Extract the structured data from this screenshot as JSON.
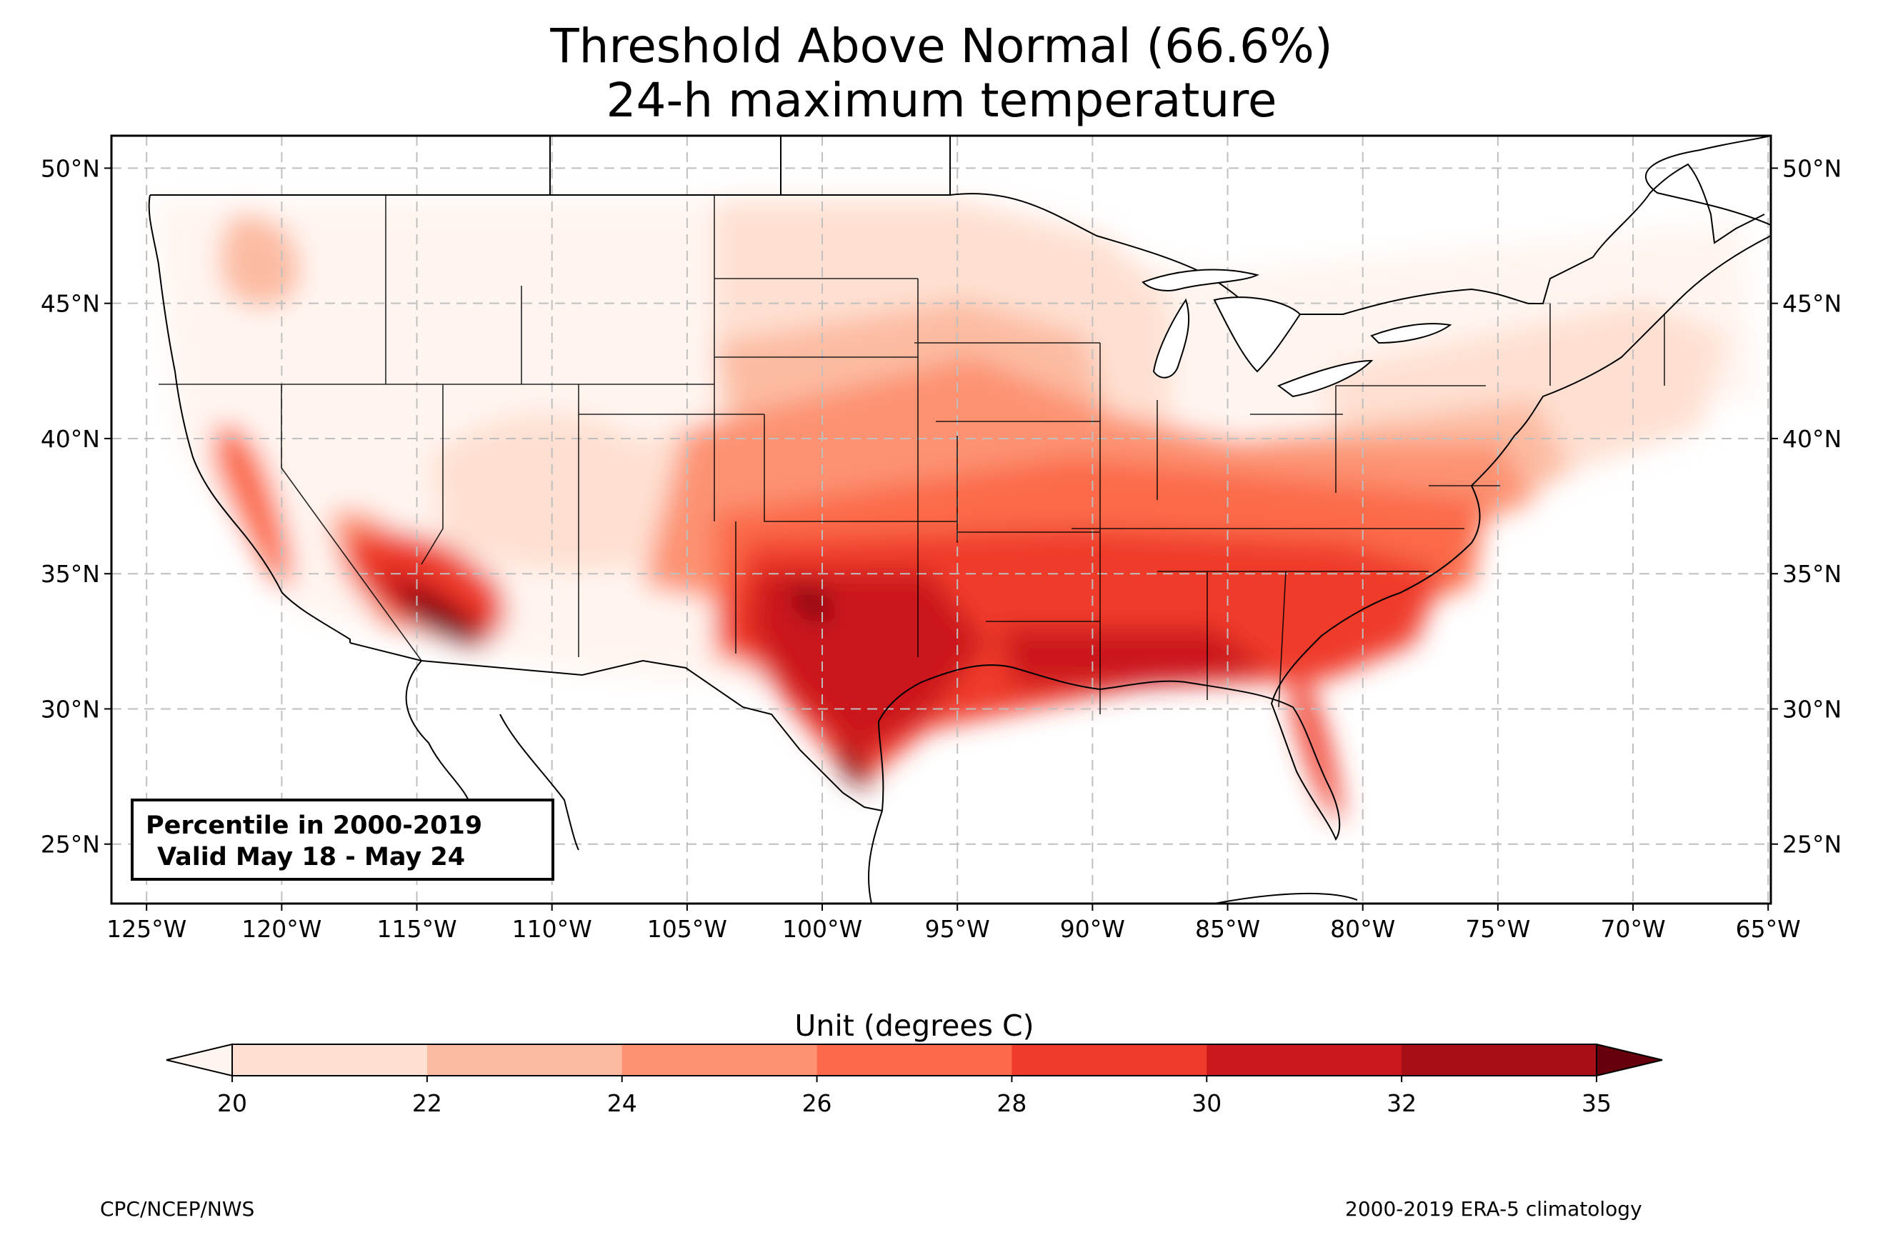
{
  "title": "Threshold Above Normal (66.6%)",
  "subtitle": "24-h maximum temperature",
  "info_box": {
    "line1": "Percentile in 2000-2019",
    "line2": "Valid May 18 - May 24"
  },
  "colorbar": {
    "title": "Unit (degrees C)",
    "ticks": [
      "20",
      "22",
      "24",
      "26",
      "28",
      "30",
      "32",
      "35"
    ],
    "colors": [
      "#fee0d2",
      "#fcbba1",
      "#fc9272",
      "#fb6a4a",
      "#ef3b2c",
      "#cb181d",
      "#a50f15"
    ],
    "under_color": "#fff5f0",
    "over_color": "#67000d"
  },
  "credits": {
    "left": "CPC/NCEP/NWS",
    "right": "2000-2019 ERA-5 climatology"
  },
  "chart_data": {
    "type": "heatmap",
    "title": "Threshold Above Normal (66.6%)",
    "subtitle": "24-h maximum temperature",
    "region": "Contiguous United States",
    "variable": "24-h maximum temperature, 66.6th percentile threshold",
    "unit": "degrees C",
    "x_axis": {
      "kind": "longitude",
      "range": [
        -126.3,
        -64.9
      ],
      "ticks": [
        -125,
        -120,
        -115,
        -110,
        -105,
        -100,
        -95,
        -90,
        -85,
        -80,
        -75,
        -70,
        -65
      ],
      "tick_labels": [
        "125°W",
        "120°W",
        "115°W",
        "110°W",
        "105°W",
        "100°W",
        "95°W",
        "90°W",
        "85°W",
        "80°W",
        "75°W",
        "70°W",
        "65°W"
      ]
    },
    "y_axis": {
      "kind": "latitude",
      "range": [
        22.8,
        51.2
      ],
      "ticks": [
        25,
        30,
        35,
        40,
        45,
        50
      ],
      "tick_labels": [
        "25°N",
        "30°N",
        "35°N",
        "40°N",
        "45°N",
        "50°N"
      ]
    },
    "levels": [
      20,
      22,
      24,
      26,
      28,
      30,
      32,
      35
    ],
    "grid": true,
    "colorbar_location": "bottom",
    "regions": [
      {
        "area": "Mountain West / Northern Plains",
        "value_range": "<20",
        "level": 0
      },
      {
        "area": "Pacific Northwest coast",
        "value_range": "<20",
        "level": 0
      },
      {
        "area": "Interior Pacific Northwest basin",
        "value_range": "22-24",
        "level": 2
      },
      {
        "area": "New England / Great Lakes",
        "value_range": "20-24",
        "level": 1
      },
      {
        "area": "Central Plains / Midwest",
        "value_range": "24-28",
        "level": 3
      },
      {
        "area": "Central California valley",
        "value_range": "26-32",
        "level": 4
      },
      {
        "area": "Mid-Atlantic / Ohio Valley",
        "value_range": "26-28",
        "level": 4
      },
      {
        "area": "Southeast / Gulf Coast",
        "value_range": "30-32",
        "level": 5
      },
      {
        "area": "Texas / Oklahoma",
        "value_range": "30-35",
        "level": 6
      },
      {
        "area": "Desert Southwest (AZ / lower Colorado River)",
        "value_range": ">32",
        "level": 7
      },
      {
        "area": "South Texas (Rio Grande valley)",
        "value_range": ">32",
        "level": 7
      },
      {
        "area": "Florida peninsula",
        "value_range": "28-32",
        "level": 5
      }
    ]
  }
}
